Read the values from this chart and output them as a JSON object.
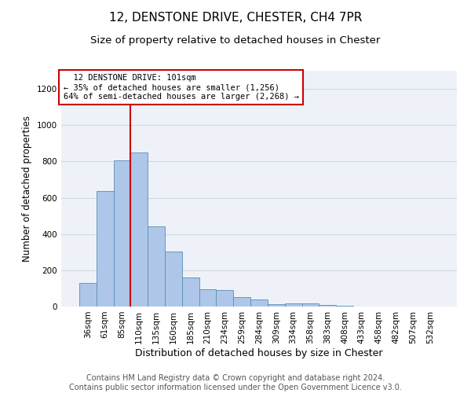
{
  "title": "12, DENSTONE DRIVE, CHESTER, CH4 7PR",
  "subtitle": "Size of property relative to detached houses in Chester",
  "xlabel": "Distribution of detached houses by size in Chester",
  "ylabel": "Number of detached properties",
  "footer_line1": "Contains HM Land Registry data © Crown copyright and database right 2024.",
  "footer_line2": "Contains public sector information licensed under the Open Government Licence v3.0.",
  "annotation_line1": "  12 DENSTONE DRIVE: 101sqm",
  "annotation_line2": "← 35% of detached houses are smaller (1,256)",
  "annotation_line3": "64% of semi-detached houses are larger (2,268) →",
  "bar_labels": [
    "36sqm",
    "61sqm",
    "85sqm",
    "110sqm",
    "135sqm",
    "160sqm",
    "185sqm",
    "210sqm",
    "234sqm",
    "259sqm",
    "284sqm",
    "309sqm",
    "334sqm",
    "358sqm",
    "383sqm",
    "408sqm",
    "433sqm",
    "458sqm",
    "482sqm",
    "507sqm",
    "532sqm"
  ],
  "bar_values": [
    130,
    635,
    805,
    850,
    440,
    305,
    160,
    95,
    90,
    50,
    38,
    15,
    18,
    17,
    10,
    3,
    0,
    0,
    0,
    0,
    0
  ],
  "bar_color": "#aec6e8",
  "bar_edge_color": "#5b8db8",
  "vline_x": 2.5,
  "vline_color": "#cc0000",
  "annotation_box_color": "#cc0000",
  "ylim": [
    0,
    1300
  ],
  "yticks": [
    0,
    200,
    400,
    600,
    800,
    1000,
    1200
  ],
  "grid_color": "#d0d8e8",
  "bg_color": "#eef2f8",
  "title_fontsize": 11,
  "subtitle_fontsize": 9.5,
  "xlabel_fontsize": 9,
  "ylabel_fontsize": 8.5,
  "tick_fontsize": 7.5,
  "footer_fontsize": 7
}
